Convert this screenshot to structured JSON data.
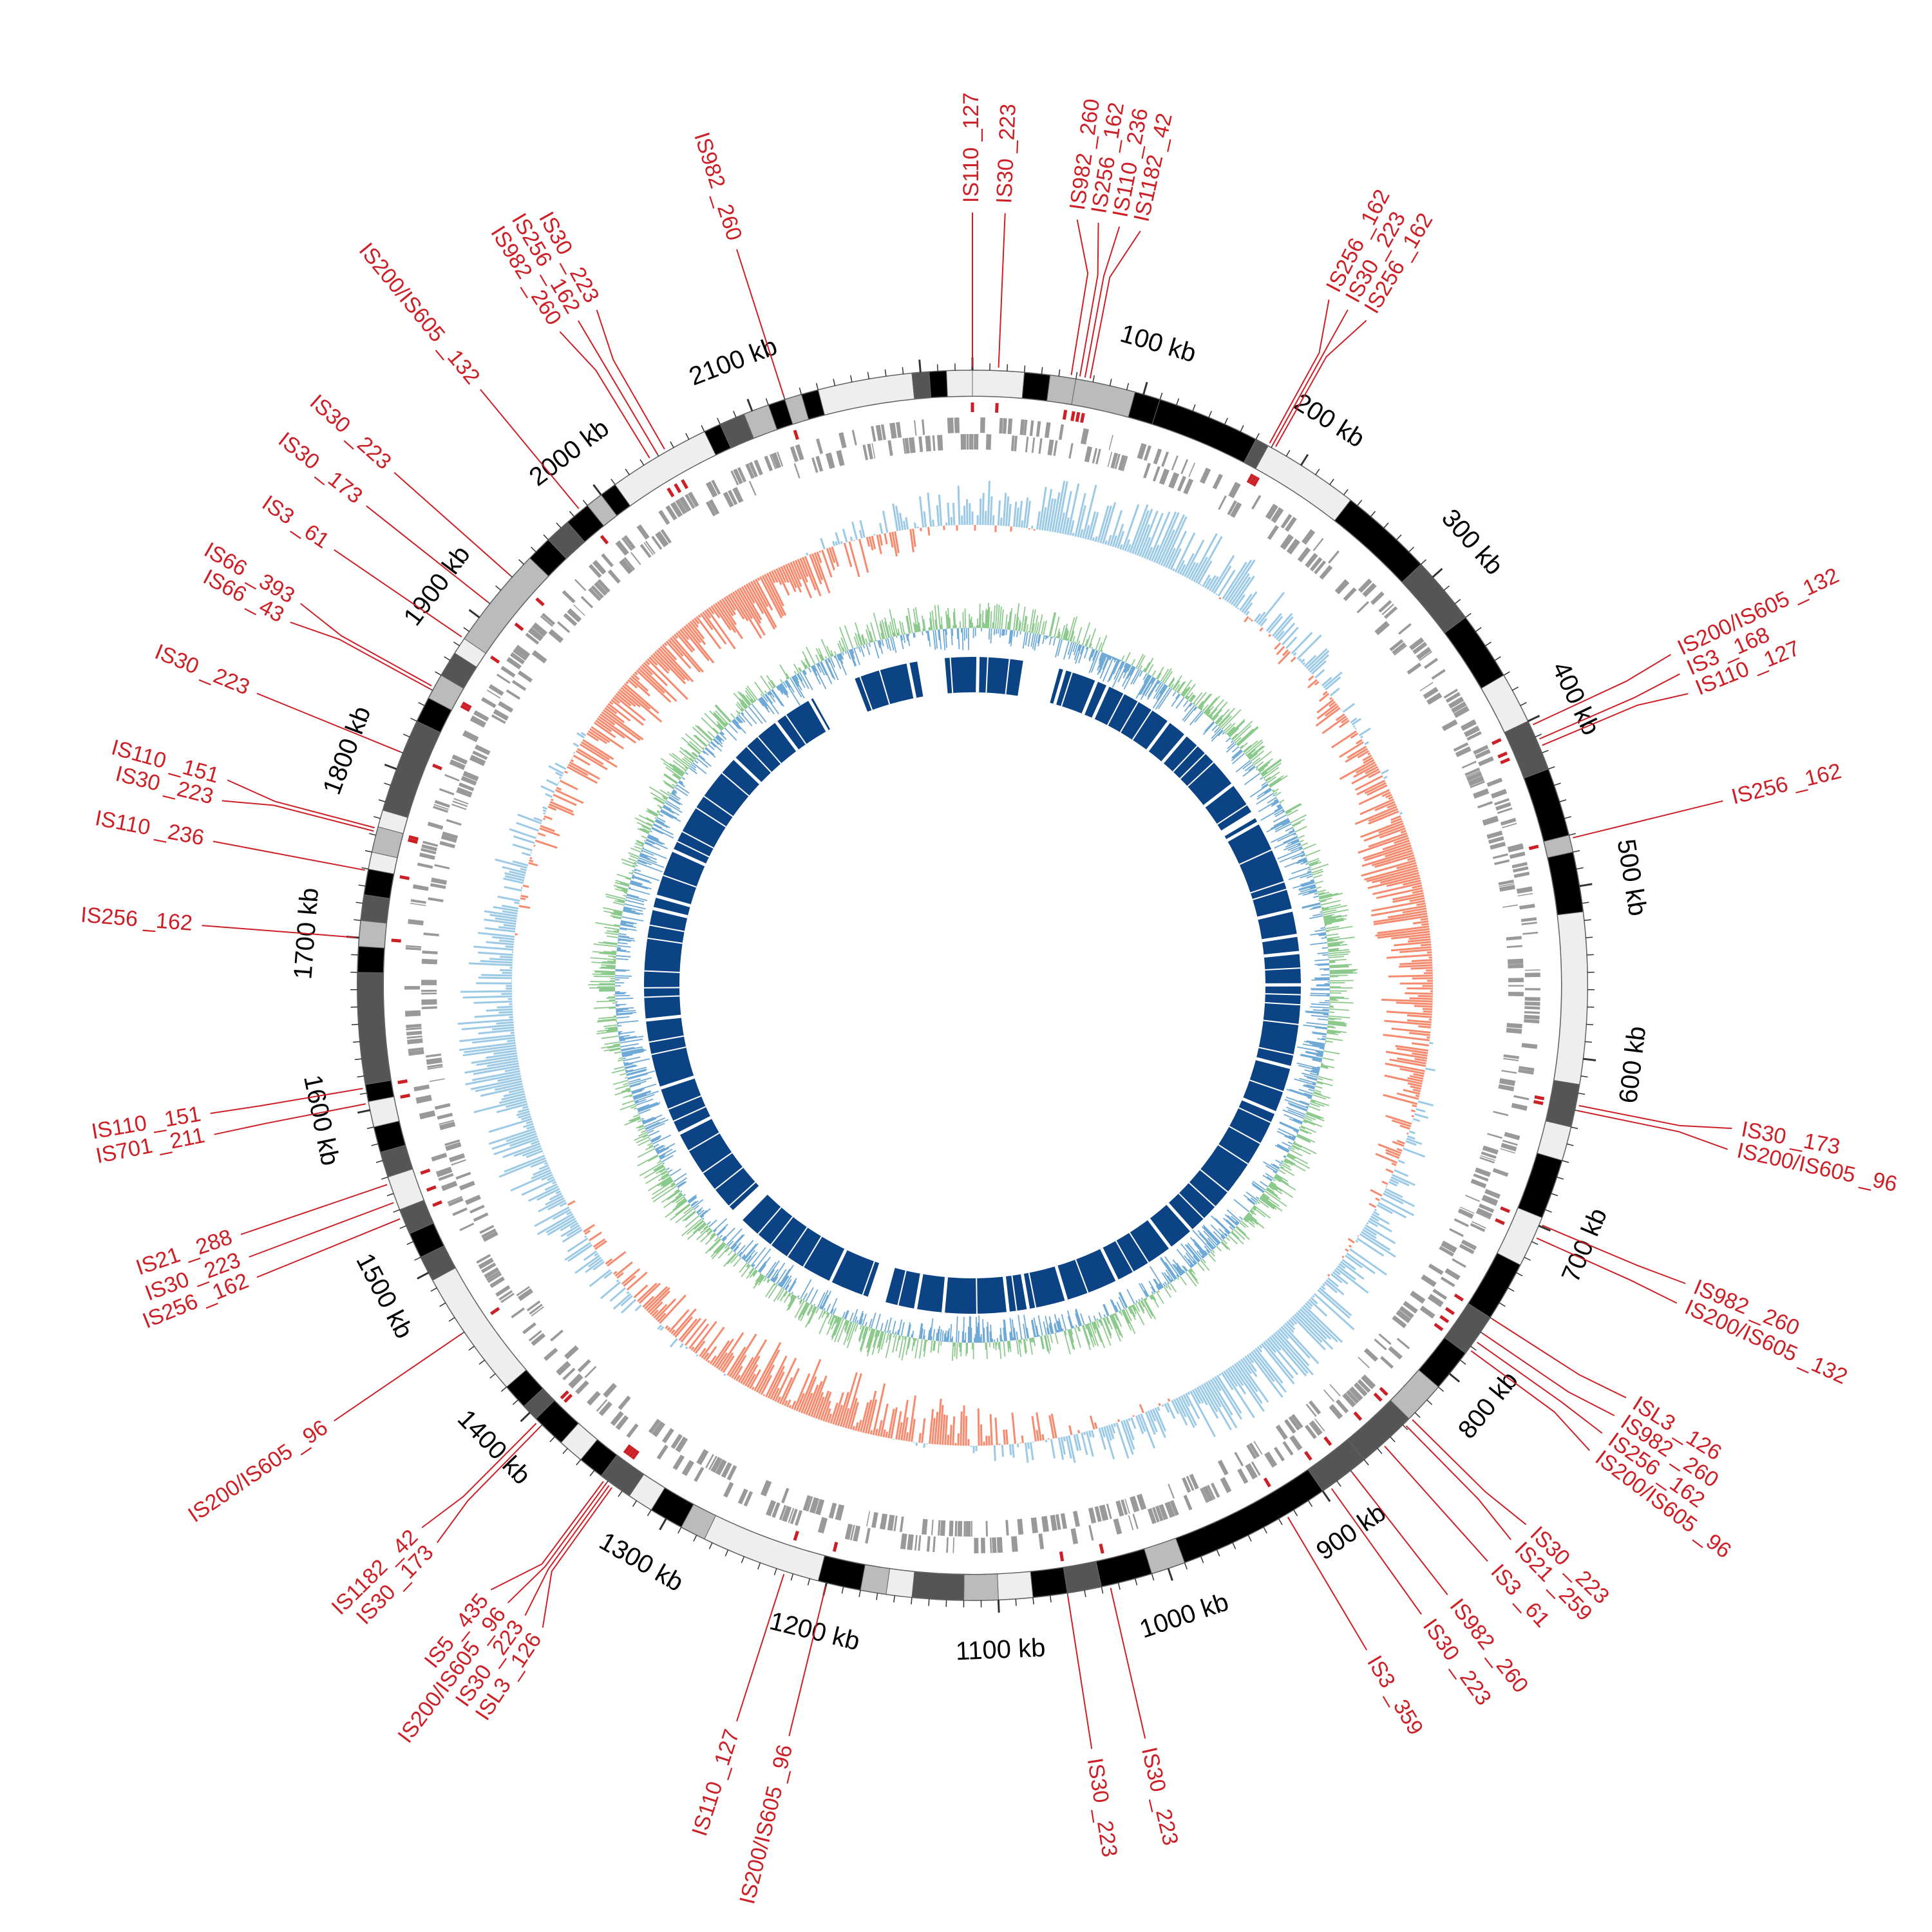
{
  "genome": {
    "length_kb": 2230,
    "start_angle_deg": 0
  },
  "colors": {
    "is_label": "#cc1f26",
    "is_mark": "#cc1f26",
    "gene_track": "#999999",
    "gc_skew_pos": "#9ccae6",
    "gc_skew_neg": "#f58a6e",
    "gc_content_pos": "#8cc98c",
    "gc_content_neg": "#6fa9d6",
    "similarity": "#0b4384",
    "ideogram_dark": "#000000",
    "ideogram_mid": "#555555",
    "ideogram_light": "#bbbbbb",
    "ideogram_pale": "#eeeeee"
  },
  "scale_labels": [
    "100 kb",
    "200 kb",
    "300 kb",
    "400 kb",
    "500 kb",
    "600 kb",
    "700 kb",
    "800 kb",
    "900 kb",
    "1000 kb",
    "1100 kb",
    "1200 kb",
    "1300 kb",
    "1400 kb",
    "1500 kb",
    "1600 kb",
    "1700 kb",
    "1800 kb",
    "1900 kb",
    "2000 kb",
    "2100 kb"
  ],
  "ideogram_bands": [
    {
      "start": 0,
      "end": 30,
      "shade": "pale"
    },
    {
      "start": 30,
      "end": 45,
      "shade": "dark"
    },
    {
      "start": 45,
      "end": 60,
      "shade": "light"
    },
    {
      "start": 60,
      "end": 95,
      "shade": "light"
    },
    {
      "start": 95,
      "end": 110,
      "shade": "dark"
    },
    {
      "start": 110,
      "end": 170,
      "shade": "dark"
    },
    {
      "start": 170,
      "end": 178,
      "shade": "mid"
    },
    {
      "start": 178,
      "end": 235,
      "shade": "pale"
    },
    {
      "start": 235,
      "end": 290,
      "shade": "dark"
    },
    {
      "start": 290,
      "end": 330,
      "shade": "mid"
    },
    {
      "start": 330,
      "end": 370,
      "shade": "dark"
    },
    {
      "start": 370,
      "end": 400,
      "shade": "pale"
    },
    {
      "start": 400,
      "end": 430,
      "shade": "mid"
    },
    {
      "start": 430,
      "end": 470,
      "shade": "dark"
    },
    {
      "start": 470,
      "end": 480,
      "shade": "light"
    },
    {
      "start": 480,
      "end": 515,
      "shade": "dark"
    },
    {
      "start": 515,
      "end": 615,
      "shade": "pale"
    },
    {
      "start": 615,
      "end": 640,
      "shade": "mid"
    },
    {
      "start": 640,
      "end": 660,
      "shade": "pale"
    },
    {
      "start": 660,
      "end": 695,
      "shade": "dark"
    },
    {
      "start": 695,
      "end": 725,
      "shade": "pale"
    },
    {
      "start": 725,
      "end": 760,
      "shade": "dark"
    },
    {
      "start": 760,
      "end": 785,
      "shade": "mid"
    },
    {
      "start": 785,
      "end": 810,
      "shade": "dark"
    },
    {
      "start": 810,
      "end": 835,
      "shade": "light"
    },
    {
      "start": 835,
      "end": 870,
      "shade": "mid"
    },
    {
      "start": 870,
      "end": 900,
      "shade": "mid"
    },
    {
      "start": 900,
      "end": 990,
      "shade": "dark"
    },
    {
      "start": 990,
      "end": 1010,
      "shade": "light"
    },
    {
      "start": 1010,
      "end": 1040,
      "shade": "dark"
    },
    {
      "start": 1040,
      "end": 1060,
      "shade": "mid"
    },
    {
      "start": 1060,
      "end": 1080,
      "shade": "dark"
    },
    {
      "start": 1080,
      "end": 1100,
      "shade": "pale"
    },
    {
      "start": 1100,
      "end": 1120,
      "shade": "light"
    },
    {
      "start": 1120,
      "end": 1150,
      "shade": "mid"
    },
    {
      "start": 1150,
      "end": 1165,
      "shade": "pale"
    },
    {
      "start": 1165,
      "end": 1180,
      "shade": "light"
    },
    {
      "start": 1180,
      "end": 1205,
      "shade": "dark"
    },
    {
      "start": 1205,
      "end": 1275,
      "shade": "pale"
    },
    {
      "start": 1275,
      "end": 1290,
      "shade": "light"
    },
    {
      "start": 1290,
      "end": 1310,
      "shade": "dark"
    },
    {
      "start": 1310,
      "end": 1325,
      "shade": "pale"
    },
    {
      "start": 1325,
      "end": 1345,
      "shade": "mid"
    },
    {
      "start": 1345,
      "end": 1360,
      "shade": "dark"
    },
    {
      "start": 1360,
      "end": 1375,
      "shade": "pale"
    },
    {
      "start": 1375,
      "end": 1395,
      "shade": "dark"
    },
    {
      "start": 1395,
      "end": 1405,
      "shade": "mid"
    },
    {
      "start": 1405,
      "end": 1420,
      "shade": "dark"
    },
    {
      "start": 1420,
      "end": 1495,
      "shade": "pale"
    },
    {
      "start": 1495,
      "end": 1510,
      "shade": "mid"
    },
    {
      "start": 1510,
      "end": 1525,
      "shade": "dark"
    },
    {
      "start": 1525,
      "end": 1540,
      "shade": "mid"
    },
    {
      "start": 1540,
      "end": 1560,
      "shade": "pale"
    },
    {
      "start": 1560,
      "end": 1575,
      "shade": "mid"
    },
    {
      "start": 1575,
      "end": 1590,
      "shade": "dark"
    },
    {
      "start": 1590,
      "end": 1605,
      "shade": "pale"
    },
    {
      "start": 1605,
      "end": 1615,
      "shade": "dark"
    },
    {
      "start": 1615,
      "end": 1680,
      "shade": "mid"
    },
    {
      "start": 1680,
      "end": 1695,
      "shade": "dark"
    },
    {
      "start": 1695,
      "end": 1710,
      "shade": "light"
    },
    {
      "start": 1710,
      "end": 1725,
      "shade": "mid"
    },
    {
      "start": 1725,
      "end": 1740,
      "shade": "dark"
    },
    {
      "start": 1740,
      "end": 1750,
      "shade": "pale"
    },
    {
      "start": 1750,
      "end": 1765,
      "shade": "light"
    },
    {
      "start": 1765,
      "end": 1775,
      "shade": "pale"
    },
    {
      "start": 1775,
      "end": 1830,
      "shade": "mid"
    },
    {
      "start": 1830,
      "end": 1845,
      "shade": "dark"
    },
    {
      "start": 1845,
      "end": 1860,
      "shade": "light"
    },
    {
      "start": 1860,
      "end": 1875,
      "shade": "mid"
    },
    {
      "start": 1875,
      "end": 1885,
      "shade": "pale"
    },
    {
      "start": 1885,
      "end": 1945,
      "shade": "light"
    },
    {
      "start": 1945,
      "end": 1960,
      "shade": "dark"
    },
    {
      "start": 1960,
      "end": 1975,
      "shade": "mid"
    },
    {
      "start": 1975,
      "end": 1990,
      "shade": "dark"
    },
    {
      "start": 1990,
      "end": 2000,
      "shade": "light"
    },
    {
      "start": 2000,
      "end": 2010,
      "shade": "dark"
    },
    {
      "start": 2010,
      "end": 2070,
      "shade": "pale"
    },
    {
      "start": 2070,
      "end": 2080,
      "shade": "dark"
    },
    {
      "start": 2080,
      "end": 2095,
      "shade": "mid"
    },
    {
      "start": 2095,
      "end": 2110,
      "shade": "light"
    },
    {
      "start": 2110,
      "end": 2120,
      "shade": "dark"
    },
    {
      "start": 2120,
      "end": 2130,
      "shade": "light"
    },
    {
      "start": 2130,
      "end": 2140,
      "shade": "dark"
    },
    {
      "start": 2140,
      "end": 2195,
      "shade": "pale"
    },
    {
      "start": 2195,
      "end": 2205,
      "shade": "mid"
    },
    {
      "start": 2205,
      "end": 2215,
      "shade": "dark"
    },
    {
      "start": 2215,
      "end": 2230,
      "shade": "pale"
    }
  ],
  "is_elements": [
    {
      "label": "IS110 _127",
      "pos": 0,
      "side": "right"
    },
    {
      "label": "IS30 _223",
      "pos": 15,
      "side": "right"
    },
    {
      "label": "IS982 _260",
      "pos": 57,
      "side": "right"
    },
    {
      "label": "IS256 _162",
      "pos": 62,
      "side": "right"
    },
    {
      "label": "IS110 _236",
      "pos": 65,
      "side": "right"
    },
    {
      "label": "IS1182 _42",
      "pos": 68,
      "side": "right"
    },
    {
      "label": "IS256 _162",
      "pos": 178,
      "side": "right"
    },
    {
      "label": "IS30 _223",
      "pos": 180,
      "side": "right"
    },
    {
      "label": "IS256 _162",
      "pos": 182,
      "side": "right"
    },
    {
      "label": "IS200/IS605 _132",
      "pos": 403,
      "side": "right"
    },
    {
      "label": "IS3 _168",
      "pos": 412,
      "side": "right"
    },
    {
      "label": "IS110 _127",
      "pos": 416,
      "side": "right"
    },
    {
      "label": "IS256 _162",
      "pos": 472,
      "side": "right"
    },
    {
      "label": "IS30 _173",
      "pos": 627,
      "side": "right"
    },
    {
      "label": "IS200/IS605 _96",
      "pos": 630,
      "side": "right"
    },
    {
      "label": "IS982 _260",
      "pos": 699,
      "side": "right"
    },
    {
      "label": "IS200/IS605 _132",
      "pos": 707,
      "side": "right"
    },
    {
      "label": "ISL3 _126",
      "pos": 760,
      "side": "right"
    },
    {
      "label": "IS982 _260",
      "pos": 770,
      "side": "right"
    },
    {
      "label": "IS256 _162",
      "pos": 776,
      "side": "right"
    },
    {
      "label": "IS200/IS605 _96",
      "pos": 782,
      "side": "right"
    },
    {
      "label": "IS30 _223",
      "pos": 834,
      "side": "right"
    },
    {
      "label": "IS21 _259",
      "pos": 839,
      "side": "right"
    },
    {
      "label": "IS3 _61",
      "pos": 856,
      "side": "right"
    },
    {
      "label": "IS982 _260",
      "pos": 880,
      "side": "right"
    },
    {
      "label": "IS30 _223",
      "pos": 895,
      "side": "right"
    },
    {
      "label": "IS3 _359",
      "pos": 925,
      "side": "right"
    },
    {
      "label": "IS30 _223",
      "pos": 1035,
      "side": "left"
    },
    {
      "label": "IS30 _223",
      "pos": 1060,
      "side": "left"
    },
    {
      "label": "IS200/IS605 _96",
      "pos": 1200,
      "side": "left"
    },
    {
      "label": "IS110 _127",
      "pos": 1225,
      "side": "left"
    },
    {
      "label": "ISL3 _126",
      "pos": 1336,
      "side": "left"
    },
    {
      "label": "IS30 _223",
      "pos": 1338,
      "side": "left"
    },
    {
      "label": "IS200/IS605 _96",
      "pos": 1340,
      "side": "left"
    },
    {
      "label": "IS5 _435",
      "pos": 1342,
      "side": "left"
    },
    {
      "label": "IS30 _173",
      "pos": 1390,
      "side": "left"
    },
    {
      "label": "IS1182 _42",
      "pos": 1393,
      "side": "left"
    },
    {
      "label": "IS200/IS605 _96",
      "pos": 1460,
      "side": "left"
    },
    {
      "label": "IS256 _162",
      "pos": 1535,
      "side": "left"
    },
    {
      "label": "IS30 _223",
      "pos": 1545,
      "side": "left"
    },
    {
      "label": "IS21 _288",
      "pos": 1556,
      "side": "left"
    },
    {
      "label": "IS701 _211",
      "pos": 1604,
      "side": "left"
    },
    {
      "label": "IS110 _151",
      "pos": 1613,
      "side": "left"
    },
    {
      "label": "IS256 _162",
      "pos": 1700,
      "side": "left"
    },
    {
      "label": "IS110 _236",
      "pos": 1739,
      "side": "left"
    },
    {
      "label": "IS30 _223",
      "pos": 1762,
      "side": "left"
    },
    {
      "label": "IS110 _151",
      "pos": 1764,
      "side": "left"
    },
    {
      "label": "IS30 _223",
      "pos": 1810,
      "side": "left"
    },
    {
      "label": "IS66 _43",
      "pos": 1850,
      "side": "left"
    },
    {
      "label": "IS66 _393",
      "pos": 1852,
      "side": "left"
    },
    {
      "label": "IS3 _61",
      "pos": 1885,
      "side": "left"
    },
    {
      "label": "IS30 _173",
      "pos": 1910,
      "side": "left"
    },
    {
      "label": "IS30 _223",
      "pos": 1930,
      "side": "left"
    },
    {
      "label": "IS200/IS605 _132",
      "pos": 1985,
      "side": "left"
    },
    {
      "label": "IS982 _260",
      "pos": 2035,
      "side": "left"
    },
    {
      "label": "IS256 _162",
      "pos": 2040,
      "side": "left"
    },
    {
      "label": "IS30 _223",
      "pos": 2045,
      "side": "left"
    },
    {
      "label": "IS982 _260",
      "pos": 2120,
      "side": "left"
    }
  ],
  "similarity_gaps": [
    {
      "start": 55,
      "end": 95
    },
    {
      "start": 360,
      "end": 368
    },
    {
      "start": 1210,
      "end": 1230
    },
    {
      "start": 1390,
      "end": 1405
    },
    {
      "start": 2050,
      "end": 2100
    },
    {
      "start": 2170,
      "end": 2200
    }
  ]
}
